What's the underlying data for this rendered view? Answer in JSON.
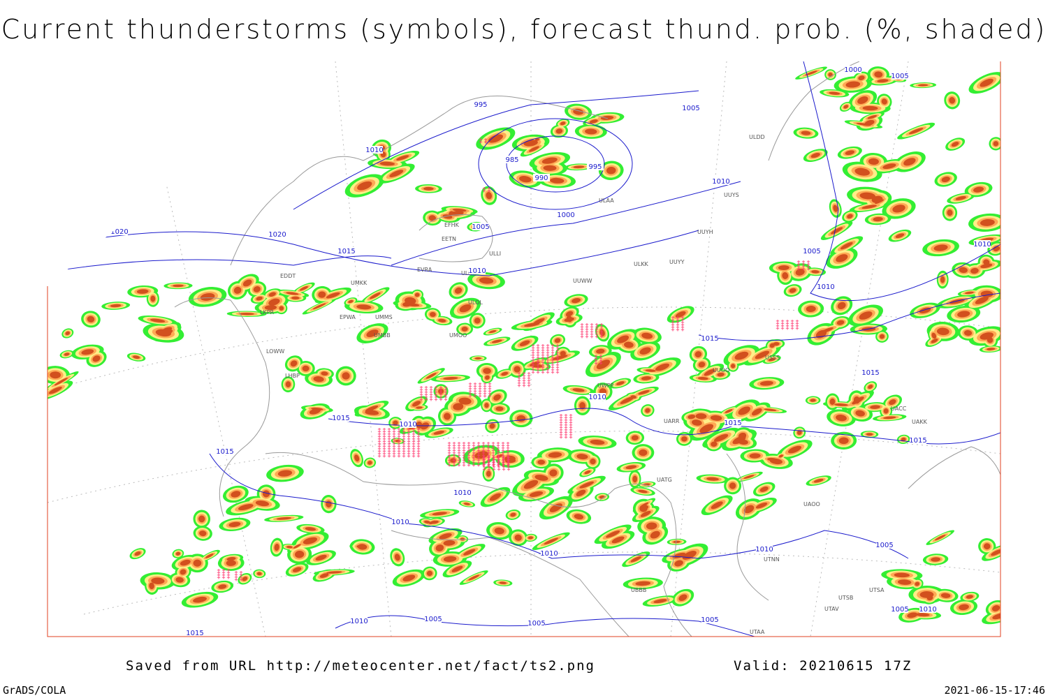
{
  "title": "Current thunderstorms (symbols), forecast thund. prob. (%, shaded)",
  "footer": {
    "source": "Saved from URL http://meteocenter.net/fact/ts2.png",
    "valid": "Valid: 20210615 17Z",
    "software": "GrADS/COLA",
    "timestamp": "2021-06-15-17:46"
  },
  "isobar_labels": [
    "1000",
    "1005",
    "995",
    "1005",
    "1010",
    "985",
    "995",
    "990",
    "1010",
    "1020",
    "1020",
    "1005",
    "1000",
    "1015",
    "1010",
    "1005",
    "1010",
    "1010",
    "1015",
    "1015",
    "1010",
    "1015",
    "1010",
    "1015",
    "1015",
    "1015",
    "1010",
    "1010",
    "1010",
    "1010",
    "1005",
    "1010",
    "1005",
    "1005",
    "1005",
    "1015",
    "1005",
    "1010"
  ],
  "station_labels": [
    "ULDD",
    "UUYS",
    "UUYH",
    "ULAA",
    "EFHK",
    "EETN",
    "ULLI",
    "EVRA",
    "ULOO",
    "UMKK",
    "EDDT",
    "ULKK",
    "UUYY",
    "ULOL",
    "EPWA",
    "UMMS",
    "UMBB",
    "UMOO",
    "LOWW",
    "LKPR",
    "LHBP",
    "UUWW",
    "UUOO",
    "UWPP",
    "UARR",
    "UATG",
    "UAOO",
    "UTNN",
    "UBBB",
    "UTAA",
    "UTSA",
    "UTSB",
    "UTAV",
    "USSS",
    "UAKK",
    "UACC"
  ]
}
